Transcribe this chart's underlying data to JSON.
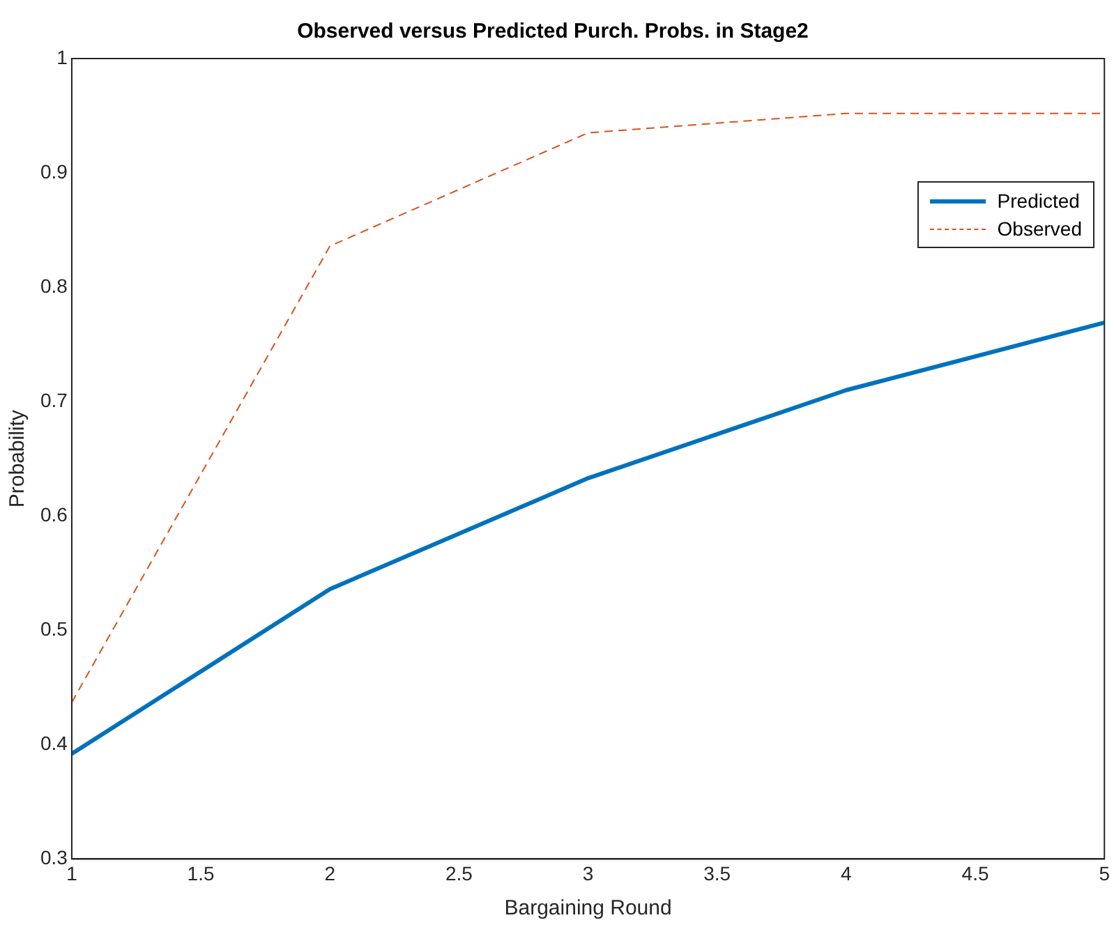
{
  "chart_data": {
    "type": "line",
    "title": "Observed versus Predicted Purch. Probs. in Stage2",
    "xlabel": "Bargaining Round",
    "ylabel": "Probability",
    "x": [
      1,
      2,
      3,
      4,
      5
    ],
    "series": [
      {
        "name": "Predicted",
        "color": "#0072bd",
        "values": [
          0.392,
          0.536,
          0.633,
          0.71,
          0.769
        ],
        "line_style": "solid"
      },
      {
        "name": "Observed",
        "color": "#d95319",
        "values": [
          0.437,
          0.836,
          0.935,
          0.952,
          0.952
        ],
        "line_style": "dashed"
      }
    ],
    "xlim": [
      1,
      5
    ],
    "xticks": [
      1,
      1.5,
      2,
      2.5,
      3,
      3.5,
      4,
      4.5,
      5
    ],
    "ylim": [
      0.3,
      1
    ],
    "yticks": [
      0.3,
      0.4,
      0.5,
      0.6,
      0.7,
      0.8,
      0.9,
      1
    ],
    "grid": false,
    "legend": "top right",
    "marker": "none"
  }
}
